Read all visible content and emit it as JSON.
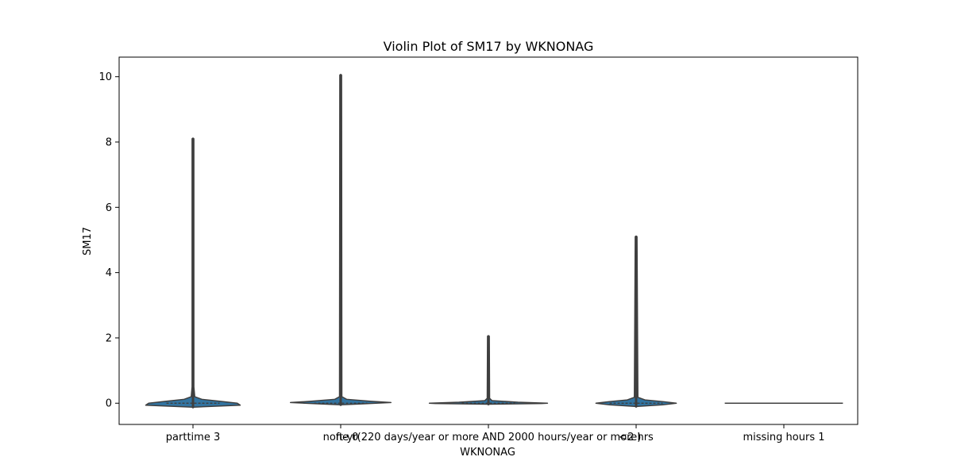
{
  "chart_data": {
    "type": "violin",
    "title": "Violin Plot of SM17 by WKNONAG",
    "xlabel": "WKNONAG",
    "ylabel": "SM17",
    "ylim": [
      -0.65,
      10.6
    ],
    "yticks": [
      0,
      2,
      4,
      6,
      8,
      10
    ],
    "grid": false,
    "colors": {
      "fill": "#3274a1",
      "edge": "#3f3f3f",
      "inner": "#3f3f3f"
    },
    "categories": [
      "parttime 3",
      "none 0",
      "ft-yr(220 days/year or more AND 2000 hours/year or more)",
      "<2 hrs",
      "missing hours 1"
    ],
    "violins": [
      {
        "category": "parttime 3",
        "min": -0.12,
        "max": 8.1,
        "q1": 0.0,
        "median": 0.0,
        "q3": 0.0,
        "profile": [
          [
            -0.12,
            0.0
          ],
          [
            -0.06,
            0.8
          ],
          [
            0.0,
            0.75
          ],
          [
            0.06,
            0.45
          ],
          [
            0.12,
            0.15
          ],
          [
            0.2,
            0.03
          ],
          [
            0.5,
            0.015
          ],
          [
            8.1,
            0.015
          ]
        ]
      },
      {
        "category": "none 0",
        "min": -0.05,
        "max": 10.05,
        "q1": 0.0,
        "median": 0.0,
        "q3": 0.0,
        "profile": [
          [
            -0.05,
            0.0
          ],
          [
            -0.02,
            0.35
          ],
          [
            0.02,
            0.85
          ],
          [
            0.06,
            0.5
          ],
          [
            0.12,
            0.1
          ],
          [
            0.2,
            0.02
          ],
          [
            10.05,
            0.015
          ]
        ]
      },
      {
        "category": "ft-yr(220 days/year or more AND 2000 hours/year or more)",
        "min": -0.03,
        "max": 2.05,
        "q1": 0.0,
        "median": 0.0,
        "q3": 0.0,
        "profile": [
          [
            -0.03,
            0.0
          ],
          [
            -0.01,
            0.9
          ],
          [
            0.0,
            1.0
          ],
          [
            0.03,
            0.5
          ],
          [
            0.08,
            0.06
          ],
          [
            0.15,
            0.02
          ],
          [
            2.05,
            0.015
          ]
        ]
      },
      {
        "category": "<2 hrs",
        "min": -0.1,
        "max": 5.1,
        "q1": 0.0,
        "median": 0.0,
        "q3": 0.0,
        "profile": [
          [
            -0.1,
            0.0
          ],
          [
            -0.05,
            0.45
          ],
          [
            0.0,
            0.68
          ],
          [
            0.05,
            0.45
          ],
          [
            0.1,
            0.15
          ],
          [
            0.18,
            0.03
          ],
          [
            5.1,
            0.015
          ]
        ]
      },
      {
        "category": "missing hours 1",
        "min": 0.0,
        "max": 0.0,
        "q1": 0.0,
        "median": 0.0,
        "q3": 0.0,
        "profile": []
      }
    ]
  }
}
